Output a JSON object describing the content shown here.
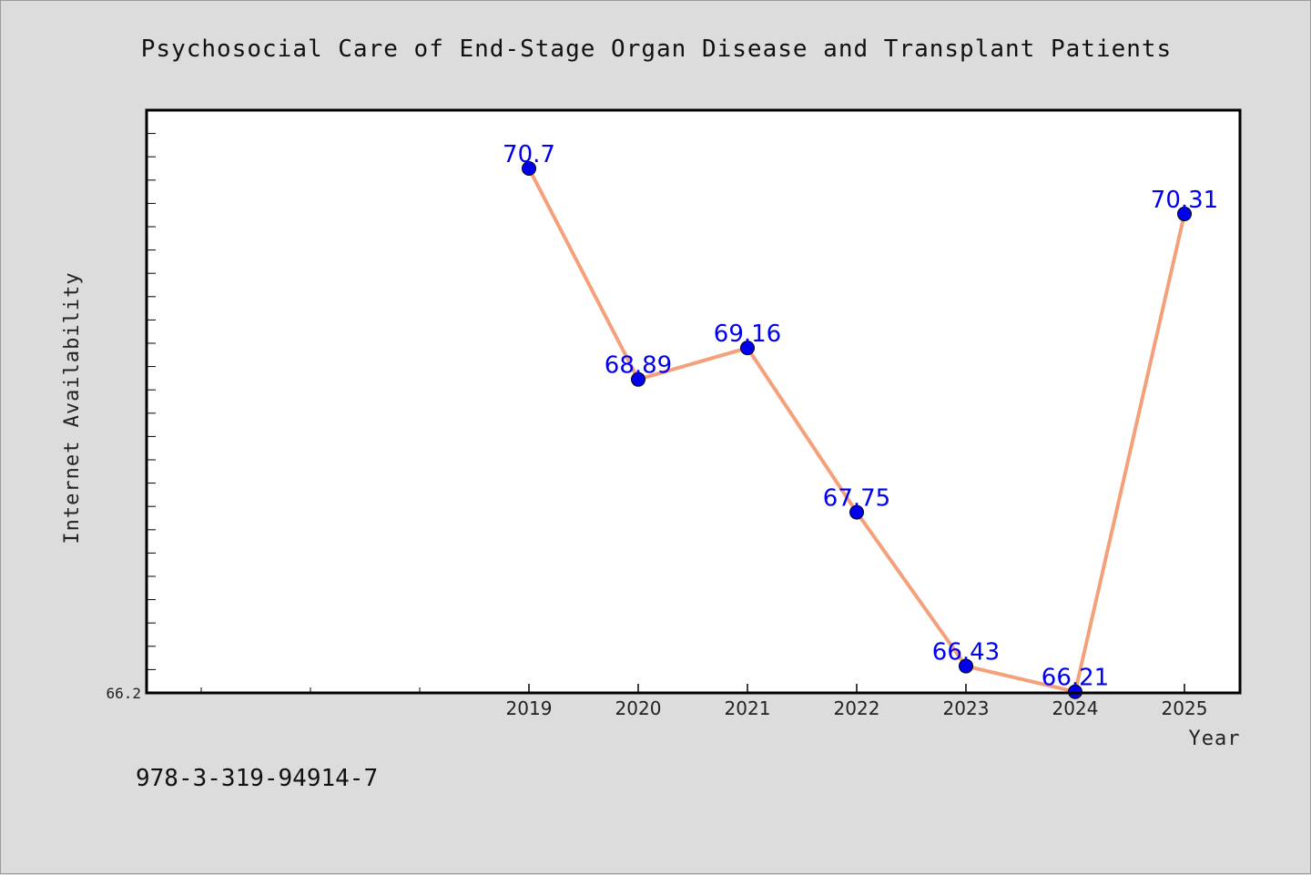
{
  "footer": {
    "isbn": "978-3-319-94914-7"
  },
  "chart_data": {
    "type": "line",
    "title": "Psychosocial Care of End-Stage Organ Disease and Transplant Patients",
    "xlabel": "Year",
    "ylabel": "Internet Availability",
    "categories": [
      "2019",
      "2020",
      "2021",
      "2022",
      "2023",
      "2024",
      "2025"
    ],
    "values": [
      70.7,
      68.89,
      69.16,
      67.75,
      66.43,
      66.21,
      70.31
    ],
    "data_labels": [
      "70.7",
      "68.89",
      "69.16",
      "67.75",
      "66.43",
      "66.21",
      "70.31"
    ],
    "y_tick_labels": [
      "66.2"
    ],
    "ylim": [
      66.2,
      71.2
    ],
    "grid": false,
    "legend": "none",
    "colors": {
      "line": "#f4a07a",
      "marker": "#0000ee",
      "data_label": "#0000ee",
      "plot_background": "#ffffff",
      "page_background": "#dcdcdc"
    }
  }
}
